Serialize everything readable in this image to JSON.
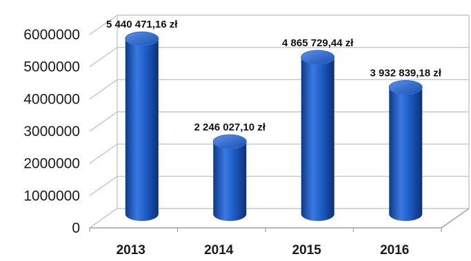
{
  "chart_data": {
    "type": "bar",
    "categories": [
      "2013",
      "2014",
      "2015",
      "2016"
    ],
    "values": [
      5440471.16,
      2246027.1,
      4865729.44,
      3932839.18
    ],
    "data_labels": [
      "5 440 471,16 zł",
      "2 246 027,10 zł",
      "4 865 729,44 zł",
      "3 932 839,18 zł"
    ],
    "y_ticks": [
      "0",
      "1000000",
      "2000000",
      "3000000",
      "4000000",
      "5000000",
      "6000000"
    ],
    "ylim": [
      0,
      6000000
    ],
    "grid": true,
    "bar_style": "3d-cylinder",
    "colors": {
      "bar": "#1f5fc8",
      "bar_dark": "#0d3a8a",
      "bar_light": "#5a92ea",
      "grid": "#b8bec8"
    }
  }
}
